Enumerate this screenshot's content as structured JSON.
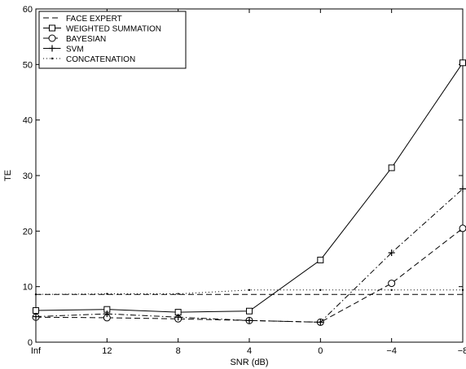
{
  "chart_data": {
    "type": "line",
    "xlabel": "SNR (dB)",
    "ylabel": "TE",
    "categories": [
      "Inf",
      "12",
      "8",
      "4",
      "0",
      "−4",
      "−8"
    ],
    "ylim": [
      0,
      60
    ],
    "yticks": [
      "0",
      "10",
      "20",
      "30",
      "40",
      "50",
      "60"
    ],
    "grid": false,
    "legend_position": "top-left",
    "series": [
      {
        "name": "FACE EXPERT",
        "style": "dashed",
        "marker": "none",
        "values": [
          8.6,
          8.6,
          8.6,
          8.6,
          8.6,
          8.6,
          8.6
        ]
      },
      {
        "name": "WEIGHTED SUMMATION",
        "style": "solid",
        "marker": "square",
        "values": [
          5.7,
          5.9,
          5.4,
          5.6,
          14.8,
          31.4,
          50.3
        ]
      },
      {
        "name": "BAYESIAN",
        "style": "dashed",
        "marker": "circle",
        "values": [
          4.5,
          4.4,
          4.2,
          3.9,
          3.6,
          10.6,
          20.5
        ]
      },
      {
        "name": "SVM",
        "style": "dashdot",
        "marker": "plus",
        "values": [
          4.6,
          5.1,
          4.5,
          3.9,
          3.6,
          16.1,
          27.6
        ]
      },
      {
        "name": "CONCATENATION",
        "style": "dotted",
        "marker": "dot",
        "values": [
          8.6,
          8.7,
          8.7,
          9.4,
          9.4,
          9.4,
          9.4
        ]
      }
    ]
  }
}
